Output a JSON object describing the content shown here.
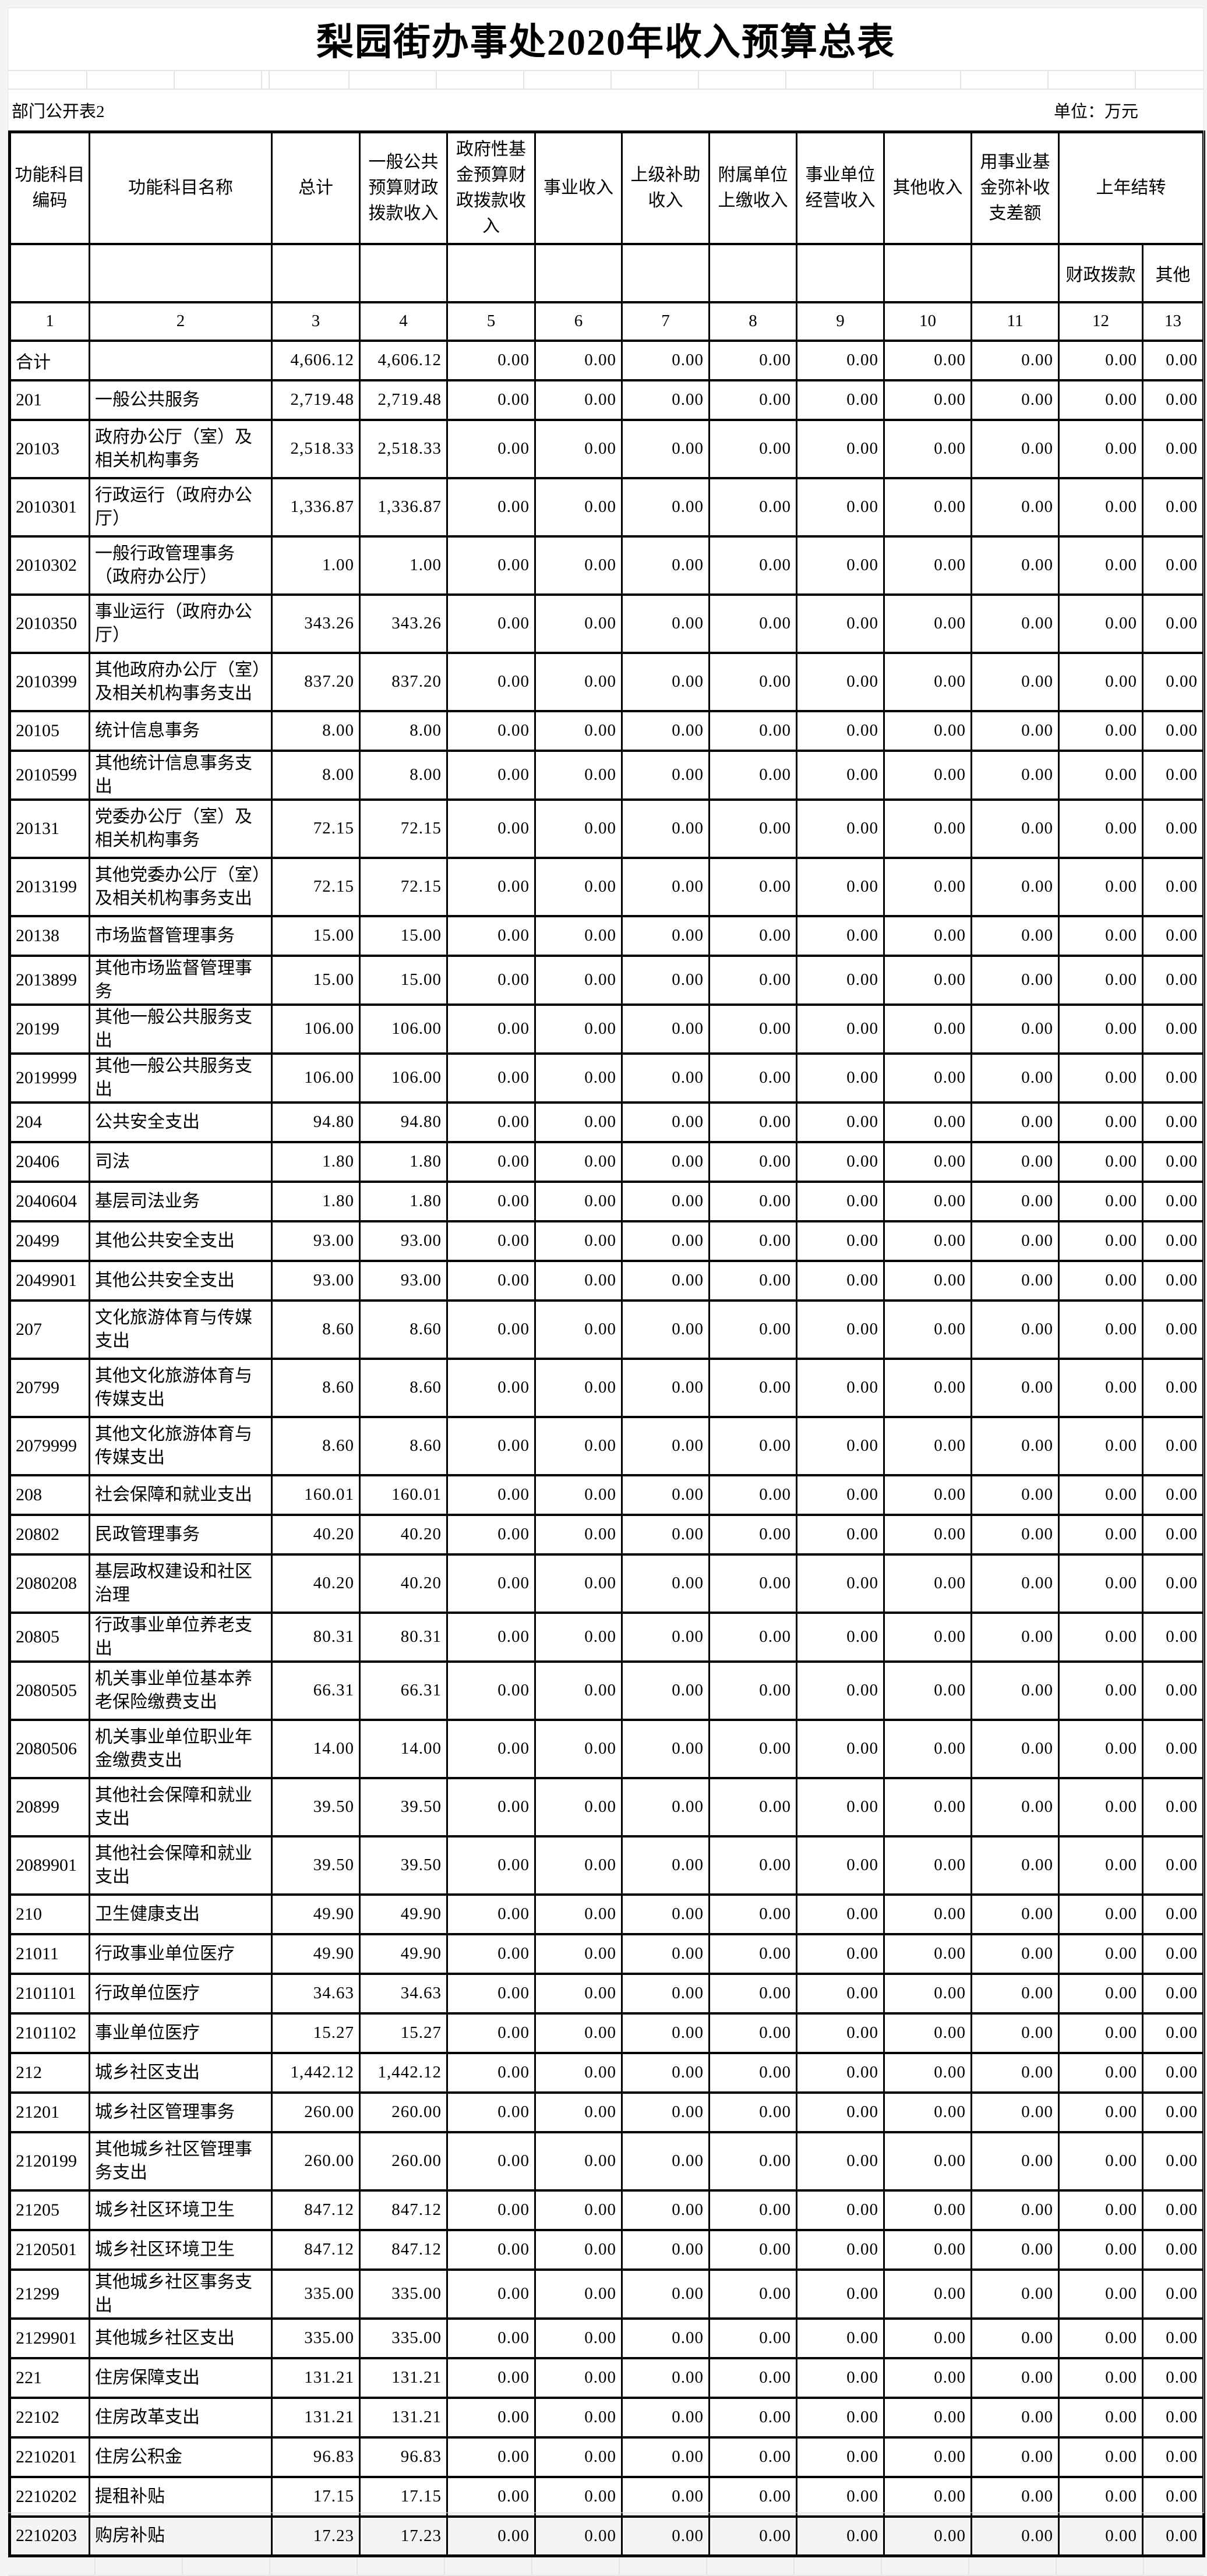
{
  "page": {
    "title": "梨园街办事处2020年收入预算总表",
    "note_left": "部门公开表2",
    "note_right": "单位：万元"
  },
  "table": {
    "headers": {
      "col1": "功能科目编码",
      "col2": "功能科目名称",
      "col3": "总计",
      "col4": "一般公共预算财政拨款收入",
      "col5": "政府性基金预算财政拨款收入",
      "col6": "事业收入",
      "col7": "上级补助收入",
      "col8": "附属单位上缴收入",
      "col9": "事业单位经营收入",
      "col10": "其他收入",
      "col11": "用事业基金弥补收支差额",
      "col12_group": "上年结转",
      "col12": "财政拨款",
      "col13": "其他"
    },
    "index_row": [
      "1",
      "2",
      "3",
      "4",
      "5",
      "6",
      "7",
      "8",
      "9",
      "10",
      "11",
      "12",
      "13"
    ],
    "rows": [
      {
        "code": "合计",
        "name": "",
        "values": [
          "4,606.12",
          "4,606.12",
          "0.00",
          "0.00",
          "0.00",
          "0.00",
          "0.00",
          "0.00",
          "0.00",
          "0.00",
          "0.00"
        ]
      },
      {
        "code": "201",
        "name": "一般公共服务",
        "values": [
          "2,719.48",
          "2,719.48",
          "0.00",
          "0.00",
          "0.00",
          "0.00",
          "0.00",
          "0.00",
          "0.00",
          "0.00",
          "0.00"
        ]
      },
      {
        "code": "20103",
        "name": "政府办公厅（室）及相关机构事务",
        "values": [
          "2,518.33",
          "2,518.33",
          "0.00",
          "0.00",
          "0.00",
          "0.00",
          "0.00",
          "0.00",
          "0.00",
          "0.00",
          "0.00"
        ]
      },
      {
        "code": "2010301",
        "name": "行政运行（政府办公厅）",
        "values": [
          "1,336.87",
          "1,336.87",
          "0.00",
          "0.00",
          "0.00",
          "0.00",
          "0.00",
          "0.00",
          "0.00",
          "0.00",
          "0.00"
        ]
      },
      {
        "code": "2010302",
        "name": "一般行政管理事务（政府办公厅）",
        "values": [
          "1.00",
          "1.00",
          "0.00",
          "0.00",
          "0.00",
          "0.00",
          "0.00",
          "0.00",
          "0.00",
          "0.00",
          "0.00"
        ]
      },
      {
        "code": "2010350",
        "name": "事业运行（政府办公厅）",
        "values": [
          "343.26",
          "343.26",
          "0.00",
          "0.00",
          "0.00",
          "0.00",
          "0.00",
          "0.00",
          "0.00",
          "0.00",
          "0.00"
        ]
      },
      {
        "code": "2010399",
        "name": "其他政府办公厅（室）及相关机构事务支出",
        "values": [
          "837.20",
          "837.20",
          "0.00",
          "0.00",
          "0.00",
          "0.00",
          "0.00",
          "0.00",
          "0.00",
          "0.00",
          "0.00"
        ]
      },
      {
        "code": "20105",
        "name": "统计信息事务",
        "values": [
          "8.00",
          "8.00",
          "0.00",
          "0.00",
          "0.00",
          "0.00",
          "0.00",
          "0.00",
          "0.00",
          "0.00",
          "0.00"
        ]
      },
      {
        "code": "2010599",
        "name": "其他统计信息事务支出",
        "values": [
          "8.00",
          "8.00",
          "0.00",
          "0.00",
          "0.00",
          "0.00",
          "0.00",
          "0.00",
          "0.00",
          "0.00",
          "0.00"
        ]
      },
      {
        "code": "20131",
        "name": "党委办公厅（室）及相关机构事务",
        "values": [
          "72.15",
          "72.15",
          "0.00",
          "0.00",
          "0.00",
          "0.00",
          "0.00",
          "0.00",
          "0.00",
          "0.00",
          "0.00"
        ]
      },
      {
        "code": "2013199",
        "name": "其他党委办公厅（室）及相关机构事务支出",
        "values": [
          "72.15",
          "72.15",
          "0.00",
          "0.00",
          "0.00",
          "0.00",
          "0.00",
          "0.00",
          "0.00",
          "0.00",
          "0.00"
        ]
      },
      {
        "code": "20138",
        "name": "市场监督管理事务",
        "values": [
          "15.00",
          "15.00",
          "0.00",
          "0.00",
          "0.00",
          "0.00",
          "0.00",
          "0.00",
          "0.00",
          "0.00",
          "0.00"
        ]
      },
      {
        "code": "2013899",
        "name": "其他市场监督管理事务",
        "values": [
          "15.00",
          "15.00",
          "0.00",
          "0.00",
          "0.00",
          "0.00",
          "0.00",
          "0.00",
          "0.00",
          "0.00",
          "0.00"
        ]
      },
      {
        "code": "20199",
        "name": "其他一般公共服务支出",
        "values": [
          "106.00",
          "106.00",
          "0.00",
          "0.00",
          "0.00",
          "0.00",
          "0.00",
          "0.00",
          "0.00",
          "0.00",
          "0.00"
        ]
      },
      {
        "code": "2019999",
        "name": "其他一般公共服务支出",
        "values": [
          "106.00",
          "106.00",
          "0.00",
          "0.00",
          "0.00",
          "0.00",
          "0.00",
          "0.00",
          "0.00",
          "0.00",
          "0.00"
        ]
      },
      {
        "code": "204",
        "name": "公共安全支出",
        "values": [
          "94.80",
          "94.80",
          "0.00",
          "0.00",
          "0.00",
          "0.00",
          "0.00",
          "0.00",
          "0.00",
          "0.00",
          "0.00"
        ]
      },
      {
        "code": "20406",
        "name": "司法",
        "values": [
          "1.80",
          "1.80",
          "0.00",
          "0.00",
          "0.00",
          "0.00",
          "0.00",
          "0.00",
          "0.00",
          "0.00",
          "0.00"
        ]
      },
      {
        "code": "2040604",
        "name": "基层司法业务",
        "values": [
          "1.80",
          "1.80",
          "0.00",
          "0.00",
          "0.00",
          "0.00",
          "0.00",
          "0.00",
          "0.00",
          "0.00",
          "0.00"
        ]
      },
      {
        "code": "20499",
        "name": "其他公共安全支出",
        "values": [
          "93.00",
          "93.00",
          "0.00",
          "0.00",
          "0.00",
          "0.00",
          "0.00",
          "0.00",
          "0.00",
          "0.00",
          "0.00"
        ]
      },
      {
        "code": "2049901",
        "name": "其他公共安全支出",
        "values": [
          "93.00",
          "93.00",
          "0.00",
          "0.00",
          "0.00",
          "0.00",
          "0.00",
          "0.00",
          "0.00",
          "0.00",
          "0.00"
        ]
      },
      {
        "code": "207",
        "name": "文化旅游体育与传媒支出",
        "values": [
          "8.60",
          "8.60",
          "0.00",
          "0.00",
          "0.00",
          "0.00",
          "0.00",
          "0.00",
          "0.00",
          "0.00",
          "0.00"
        ]
      },
      {
        "code": "20799",
        "name": "其他文化旅游体育与传媒支出",
        "values": [
          "8.60",
          "8.60",
          "0.00",
          "0.00",
          "0.00",
          "0.00",
          "0.00",
          "0.00",
          "0.00",
          "0.00",
          "0.00"
        ]
      },
      {
        "code": "2079999",
        "name": "其他文化旅游体育与传媒支出",
        "values": [
          "8.60",
          "8.60",
          "0.00",
          "0.00",
          "0.00",
          "0.00",
          "0.00",
          "0.00",
          "0.00",
          "0.00",
          "0.00"
        ]
      },
      {
        "code": "208",
        "name": "社会保障和就业支出",
        "values": [
          "160.01",
          "160.01",
          "0.00",
          "0.00",
          "0.00",
          "0.00",
          "0.00",
          "0.00",
          "0.00",
          "0.00",
          "0.00"
        ]
      },
      {
        "code": "20802",
        "name": "民政管理事务",
        "values": [
          "40.20",
          "40.20",
          "0.00",
          "0.00",
          "0.00",
          "0.00",
          "0.00",
          "0.00",
          "0.00",
          "0.00",
          "0.00"
        ]
      },
      {
        "code": "2080208",
        "name": "基层政权建设和社区治理",
        "values": [
          "40.20",
          "40.20",
          "0.00",
          "0.00",
          "0.00",
          "0.00",
          "0.00",
          "0.00",
          "0.00",
          "0.00",
          "0.00"
        ]
      },
      {
        "code": "20805",
        "name": "行政事业单位养老支出",
        "values": [
          "80.31",
          "80.31",
          "0.00",
          "0.00",
          "0.00",
          "0.00",
          "0.00",
          "0.00",
          "0.00",
          "0.00",
          "0.00"
        ]
      },
      {
        "code": "2080505",
        "name": "机关事业单位基本养老保险缴费支出",
        "values": [
          "66.31",
          "66.31",
          "0.00",
          "0.00",
          "0.00",
          "0.00",
          "0.00",
          "0.00",
          "0.00",
          "0.00",
          "0.00"
        ]
      },
      {
        "code": "2080506",
        "name": "机关事业单位职业年金缴费支出",
        "values": [
          "14.00",
          "14.00",
          "0.00",
          "0.00",
          "0.00",
          "0.00",
          "0.00",
          "0.00",
          "0.00",
          "0.00",
          "0.00"
        ]
      },
      {
        "code": "20899",
        "name": "其他社会保障和就业支出",
        "values": [
          "39.50",
          "39.50",
          "0.00",
          "0.00",
          "0.00",
          "0.00",
          "0.00",
          "0.00",
          "0.00",
          "0.00",
          "0.00"
        ]
      },
      {
        "code": "2089901",
        "name": "其他社会保障和就业支出",
        "values": [
          "39.50",
          "39.50",
          "0.00",
          "0.00",
          "0.00",
          "0.00",
          "0.00",
          "0.00",
          "0.00",
          "0.00",
          "0.00"
        ]
      },
      {
        "code": "210",
        "name": "卫生健康支出",
        "values": [
          "49.90",
          "49.90",
          "0.00",
          "0.00",
          "0.00",
          "0.00",
          "0.00",
          "0.00",
          "0.00",
          "0.00",
          "0.00"
        ]
      },
      {
        "code": "21011",
        "name": "行政事业单位医疗",
        "values": [
          "49.90",
          "49.90",
          "0.00",
          "0.00",
          "0.00",
          "0.00",
          "0.00",
          "0.00",
          "0.00",
          "0.00",
          "0.00"
        ]
      },
      {
        "code": "2101101",
        "name": "行政单位医疗",
        "values": [
          "34.63",
          "34.63",
          "0.00",
          "0.00",
          "0.00",
          "0.00",
          "0.00",
          "0.00",
          "0.00",
          "0.00",
          "0.00"
        ]
      },
      {
        "code": "2101102",
        "name": "事业单位医疗",
        "values": [
          "15.27",
          "15.27",
          "0.00",
          "0.00",
          "0.00",
          "0.00",
          "0.00",
          "0.00",
          "0.00",
          "0.00",
          "0.00"
        ]
      },
      {
        "code": "212",
        "name": "城乡社区支出",
        "values": [
          "1,442.12",
          "1,442.12",
          "0.00",
          "0.00",
          "0.00",
          "0.00",
          "0.00",
          "0.00",
          "0.00",
          "0.00",
          "0.00"
        ]
      },
      {
        "code": "21201",
        "name": "城乡社区管理事务",
        "values": [
          "260.00",
          "260.00",
          "0.00",
          "0.00",
          "0.00",
          "0.00",
          "0.00",
          "0.00",
          "0.00",
          "0.00",
          "0.00"
        ]
      },
      {
        "code": "2120199",
        "name": "其他城乡社区管理事务支出",
        "values": [
          "260.00",
          "260.00",
          "0.00",
          "0.00",
          "0.00",
          "0.00",
          "0.00",
          "0.00",
          "0.00",
          "0.00",
          "0.00"
        ]
      },
      {
        "code": "21205",
        "name": "城乡社区环境卫生",
        "values": [
          "847.12",
          "847.12",
          "0.00",
          "0.00",
          "0.00",
          "0.00",
          "0.00",
          "0.00",
          "0.00",
          "0.00",
          "0.00"
        ]
      },
      {
        "code": "2120501",
        "name": "城乡社区环境卫生",
        "values": [
          "847.12",
          "847.12",
          "0.00",
          "0.00",
          "0.00",
          "0.00",
          "0.00",
          "0.00",
          "0.00",
          "0.00",
          "0.00"
        ]
      },
      {
        "code": "21299",
        "name": "其他城乡社区事务支出",
        "values": [
          "335.00",
          "335.00",
          "0.00",
          "0.00",
          "0.00",
          "0.00",
          "0.00",
          "0.00",
          "0.00",
          "0.00",
          "0.00"
        ]
      },
      {
        "code": "2129901",
        "name": "其他城乡社区支出",
        "values": [
          "335.00",
          "335.00",
          "0.00",
          "0.00",
          "0.00",
          "0.00",
          "0.00",
          "0.00",
          "0.00",
          "0.00",
          "0.00"
        ]
      },
      {
        "code": "221",
        "name": "住房保障支出",
        "values": [
          "131.21",
          "131.21",
          "0.00",
          "0.00",
          "0.00",
          "0.00",
          "0.00",
          "0.00",
          "0.00",
          "0.00",
          "0.00"
        ]
      },
      {
        "code": "22102",
        "name": "住房改革支出",
        "values": [
          "131.21",
          "131.21",
          "0.00",
          "0.00",
          "0.00",
          "0.00",
          "0.00",
          "0.00",
          "0.00",
          "0.00",
          "0.00"
        ]
      },
      {
        "code": "2210201",
        "name": "住房公积金",
        "values": [
          "96.83",
          "96.83",
          "0.00",
          "0.00",
          "0.00",
          "0.00",
          "0.00",
          "0.00",
          "0.00",
          "0.00",
          "0.00"
        ]
      },
      {
        "code": "2210202",
        "name": "提租补贴",
        "values": [
          "17.15",
          "17.15",
          "0.00",
          "0.00",
          "0.00",
          "0.00",
          "0.00",
          "0.00",
          "0.00",
          "0.00",
          "0.00"
        ]
      },
      {
        "code": "2210203",
        "name": "购房补贴",
        "values": [
          "17.23",
          "17.23",
          "0.00",
          "0.00",
          "0.00",
          "0.00",
          "0.00",
          "0.00",
          "0.00",
          "0.00",
          "0.00"
        ]
      }
    ]
  }
}
